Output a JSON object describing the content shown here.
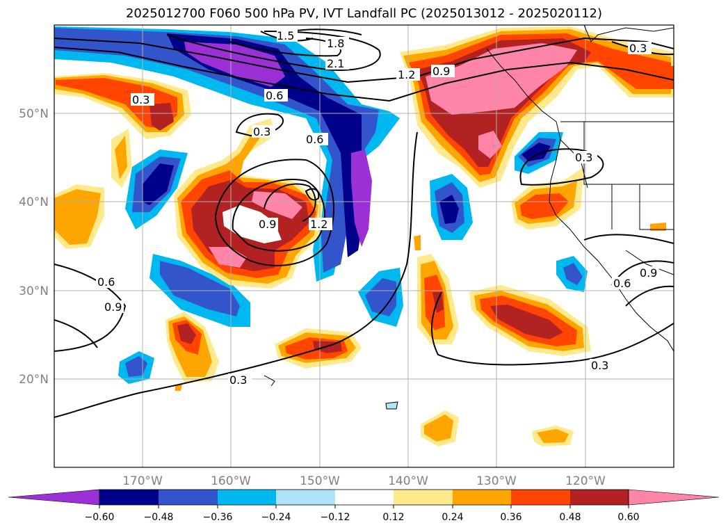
{
  "title": "2025012700 F060 500 hPa PV, IVT Landfall PC (2025013012 - 2025020112)",
  "axes": {
    "x_ticks": [
      "170°W",
      "160°W",
      "150°W",
      "140°W",
      "130°W",
      "120°W"
    ],
    "y_ticks": [
      "50°N",
      "40°N",
      "30°N",
      "20°N"
    ],
    "gridlines": true
  },
  "colorbar": {
    "ticks": [
      "−0.60",
      "−0.48",
      "−0.36",
      "−0.24",
      "−0.12",
      "0.12",
      "0.24",
      "0.36",
      "0.48",
      "0.60"
    ],
    "extend": "both",
    "colors": [
      "#9b30d6",
      "#00008b",
      "#3355cc",
      "#00b8f0",
      "#aee3f8",
      "#ffffff",
      "#ffe98a",
      "#ffa500",
      "#ff4500",
      "#b22222",
      "#ff85a8"
    ]
  },
  "contour_labels": [
    "1.5",
    "1.8",
    "2.1",
    "1.2",
    "0.9",
    "0.6",
    "0.3",
    "0.6",
    "0.3",
    "0.9",
    "1.2",
    "0.3",
    "0.6",
    "0.9",
    "0.9",
    "0.6",
    "0.3",
    "0.3",
    "0.3"
  ]
}
